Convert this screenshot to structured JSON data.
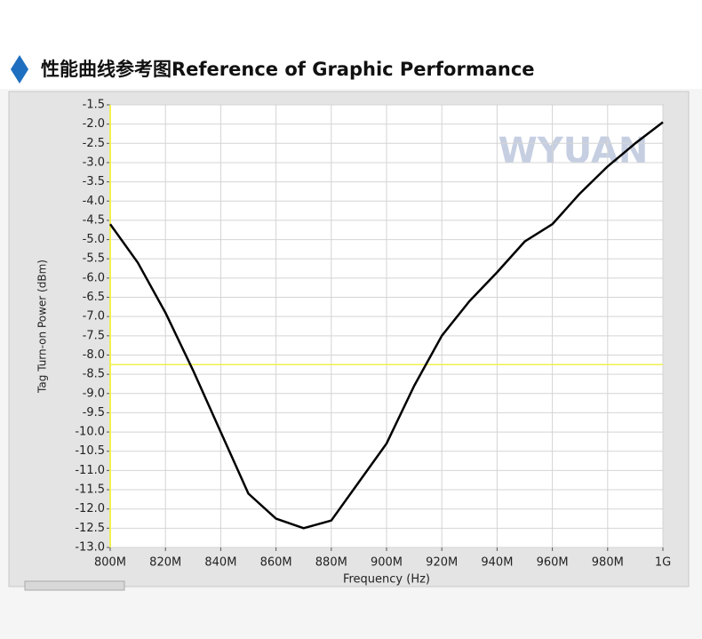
{
  "chart_data": {
    "type": "line",
    "title": "性能曲线参考图Reference of Graphic Performance",
    "watermark": "WYUAN",
    "x_label": "Frequency (Hz)",
    "y_label": "Tag Turn-on Power (dBm)",
    "x": [
      800000000,
      810000000,
      820000000,
      830000000,
      840000000,
      850000000,
      860000000,
      870000000,
      880000000,
      890000000,
      900000000,
      910000000,
      920000000,
      930000000,
      940000000,
      950000000,
      960000000,
      970000000,
      980000000,
      990000000,
      1000000000
    ],
    "values": [
      -4.6,
      -5.6,
      -6.9,
      -8.4,
      -10.0,
      -11.6,
      -12.25,
      -12.5,
      -12.3,
      -11.3,
      -10.3,
      -8.8,
      -7.5,
      -6.6,
      -5.85,
      -5.05,
      -4.6,
      -3.8,
      -3.1,
      -2.5,
      -1.95
    ],
    "color": "#000000",
    "reference_line": -8.25,
    "reference_color": "#f0f050",
    "xlim": [
      800000000,
      1000000000
    ],
    "ylim": [
      -13,
      -1.5
    ],
    "xticks": [
      {
        "value": 800000000,
        "label": "800M"
      },
      {
        "value": 820000000,
        "label": "820M"
      },
      {
        "value": 840000000,
        "label": "840M"
      },
      {
        "value": 860000000,
        "label": "860M"
      },
      {
        "value": 880000000,
        "label": "880M"
      },
      {
        "value": 900000000,
        "label": "900M"
      },
      {
        "value": 920000000,
        "label": "920M"
      },
      {
        "value": 940000000,
        "label": "940M"
      },
      {
        "value": 960000000,
        "label": "960M"
      },
      {
        "value": 980000000,
        "label": "980M"
      },
      {
        "value": 1000000000,
        "label": "1G"
      }
    ],
    "yticks": [
      -1.5,
      {
        "value": -2,
        "label": "-2.0"
      },
      -2.5,
      {
        "value": -3,
        "label": "-3.0"
      },
      -3.5,
      {
        "value": -4,
        "label": "-4.0"
      },
      -4.5,
      {
        "value": -5,
        "label": "-5.0"
      },
      -5.5,
      {
        "value": -6,
        "label": "-6.0"
      },
      -6.5,
      {
        "value": -7,
        "label": "-7.0"
      },
      -7.5,
      {
        "value": -8,
        "label": "-8.0"
      },
      -8.5,
      {
        "value": -9,
        "label": "-9.0"
      },
      -9.5,
      {
        "value": -10,
        "label": "-10.0"
      },
      -10.5,
      {
        "value": -11,
        "label": "-11.0"
      },
      -11.5,
      {
        "value": -12,
        "label": "-12.0"
      },
      -12.5,
      {
        "value": -13,
        "label": "-13.0"
      }
    ],
    "grid": true
  }
}
